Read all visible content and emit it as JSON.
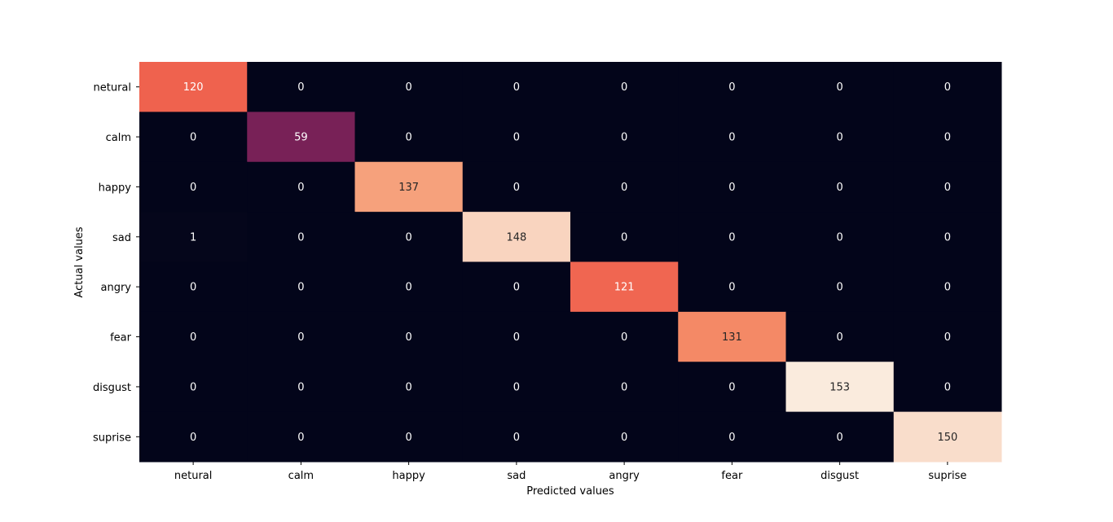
{
  "chart_data": {
    "type": "heatmap",
    "title": "",
    "xlabel": "Predicted values",
    "ylabel": "Actual values",
    "x_labels": [
      "netural",
      "calm",
      "happy",
      "sad",
      "angry",
      "fear",
      "disgust",
      "suprise"
    ],
    "y_labels": [
      "netural",
      "calm",
      "happy",
      "sad",
      "angry",
      "fear",
      "disgust",
      "suprise"
    ],
    "matrix": [
      [
        120,
        0,
        0,
        0,
        0,
        0,
        0,
        0
      ],
      [
        0,
        59,
        0,
        0,
        0,
        0,
        0,
        0
      ],
      [
        0,
        0,
        137,
        0,
        0,
        0,
        0,
        0
      ],
      [
        1,
        0,
        0,
        148,
        0,
        0,
        0,
        0
      ],
      [
        0,
        0,
        0,
        0,
        121,
        0,
        0,
        0
      ],
      [
        0,
        0,
        0,
        0,
        0,
        131,
        0,
        0
      ],
      [
        0,
        0,
        0,
        0,
        0,
        0,
        153,
        0
      ],
      [
        0,
        0,
        0,
        0,
        0,
        0,
        0,
        150
      ]
    ],
    "value_range": [
      0,
      153
    ],
    "colormap": "rocket",
    "colorbar": false,
    "grid": false,
    "annotations": true
  }
}
